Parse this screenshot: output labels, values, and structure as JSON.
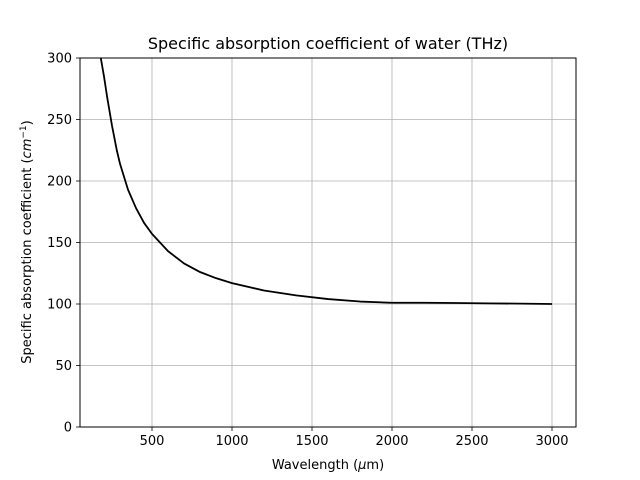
{
  "chart_data": {
    "type": "line",
    "title": "Specific absorption coefficient of water (THz)",
    "xlabel_parts": {
      "pre": "Wavelength (",
      "mu": "μ",
      "post": "m)"
    },
    "ylabel_parts": {
      "pre": "Specific absorption coefficient (",
      "cm": "cm",
      "exp": "−1",
      "post": ")"
    },
    "xlim": [
      50,
      3150
    ],
    "ylim": [
      0,
      300
    ],
    "xticks": [
      500,
      1000,
      1500,
      2000,
      2500,
      3000
    ],
    "yticks": [
      0,
      50,
      100,
      150,
      200,
      250,
      300
    ],
    "grid": true,
    "series": [
      {
        "color": "#000000",
        "x": [
          180,
          200,
          220,
          250,
          280,
          300,
          350,
          400,
          450,
          500,
          600,
          700,
          800,
          900,
          1000,
          1200,
          1400,
          1600,
          1800,
          2000,
          2200,
          2400,
          2600,
          2800,
          3000
        ],
        "y": [
          300,
          285,
          268,
          245,
          225,
          214,
          193,
          178,
          166,
          157,
          143,
          133,
          126,
          121,
          117,
          111,
          107,
          104,
          102,
          101,
          101,
          100.8,
          100.5,
          100.3,
          100
        ]
      }
    ]
  }
}
